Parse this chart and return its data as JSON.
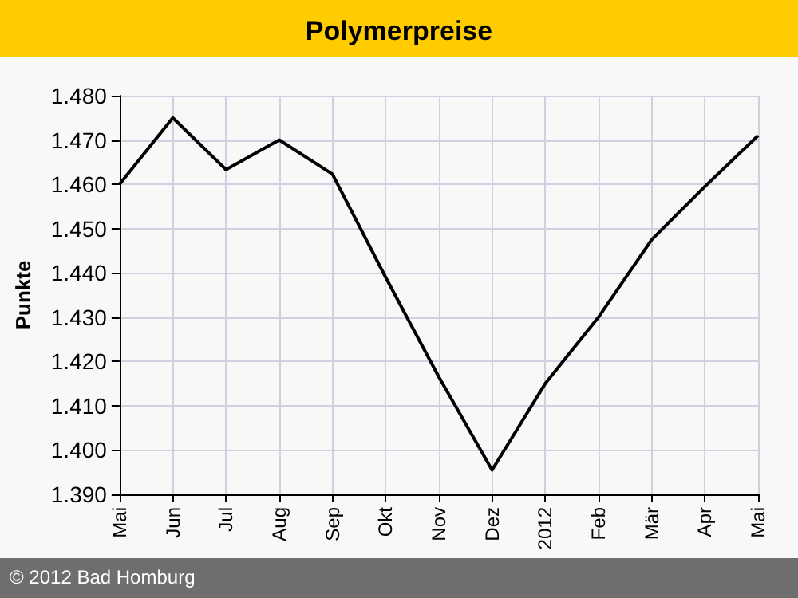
{
  "chart_data": {
    "type": "line",
    "title": "Polymerpreise",
    "ylabel": "Punkte",
    "categories": [
      "Mai",
      "Jun",
      "Jul",
      "Aug",
      "Sep",
      "Okt",
      "Nov",
      "Dez",
      "2012",
      "Feb",
      "Mär",
      "Apr",
      "Mai"
    ],
    "series": [
      {
        "color": "#000000",
        "values": [
          1460,
          1475,
          1463.3,
          1470,
          1462.3,
          1439,
          1416.5,
          1395.5,
          1415,
          1430,
          1447.5,
          1459.5,
          1471
        ]
      }
    ],
    "ylim": [
      1390,
      1480
    ],
    "yticks": [
      {
        "value": 1390,
        "label": "1.390"
      },
      {
        "value": 1400,
        "label": "1.400"
      },
      {
        "value": 1410,
        "label": "1.410"
      },
      {
        "value": 1420,
        "label": "1.420"
      },
      {
        "value": 1430,
        "label": "1.430"
      },
      {
        "value": 1440,
        "label": "1.440"
      },
      {
        "value": 1450,
        "label": "1.450"
      },
      {
        "value": 1460,
        "label": "1.460"
      },
      {
        "value": 1470,
        "label": "1.470"
      },
      {
        "value": 1480,
        "label": "1.480"
      }
    ],
    "grid": true,
    "marker": "none",
    "line_style": "solid",
    "annotations": [
      "© 2012 Bad Homburg"
    ]
  }
}
